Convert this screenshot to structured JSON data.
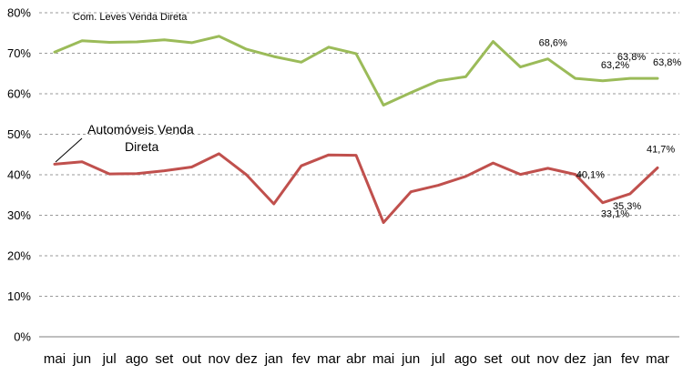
{
  "chart_data": {
    "type": "line",
    "categories": [
      "mai",
      "jun",
      "jul",
      "ago",
      "set",
      "out",
      "nov",
      "dez",
      "jan",
      "fev",
      "mar",
      "abr",
      "mai",
      "jun",
      "jul",
      "ago",
      "set",
      "out",
      "nov",
      "dez",
      "jan",
      "fev",
      "mar"
    ],
    "ylim": [
      0,
      80
    ],
    "yticks": [
      "0%",
      "10%",
      "20%",
      "30%",
      "40%",
      "50%",
      "60%",
      "70%",
      "80%"
    ],
    "grid": true,
    "series": [
      {
        "name": "Com. Leves Venda Direta",
        "color": "#9bbb59",
        "values": [
          70.3,
          73.1,
          72.7,
          72.8,
          73.3,
          72.6,
          74.2,
          71.0,
          69.2,
          67.8,
          71.5,
          69.9,
          57.2,
          60.3,
          63.2,
          64.2,
          72.9,
          66.6,
          68.6,
          63.8,
          63.2,
          63.8,
          63.8
        ]
      },
      {
        "name": "Automóveis Venda Direta",
        "color": "#c0504d",
        "values": [
          42.6,
          43.2,
          40.2,
          40.3,
          41.0,
          41.9,
          45.2,
          40.0,
          32.8,
          42.2,
          44.9,
          44.8,
          28.2,
          35.8,
          37.4,
          39.6,
          42.9,
          40.1,
          41.6,
          40.1,
          33.1,
          35.3,
          41.7
        ]
      }
    ],
    "series_labels": {
      "green": "Com. Leves Venda Direta",
      "red_line1": "Automóveis Venda",
      "red_line2": "Direta"
    },
    "data_labels": {
      "green": [
        {
          "index": 18,
          "text": "68,6%"
        },
        {
          "index": 20,
          "text": "63,2%"
        },
        {
          "index": 21,
          "text": "63,8%"
        },
        {
          "index": 22,
          "text": "63,8%"
        }
      ],
      "red": [
        {
          "index": 19,
          "text": "40,1%"
        },
        {
          "index": 20,
          "text": "33,1%"
        },
        {
          "index": 21,
          "text": "35,3%"
        },
        {
          "index": 22,
          "text": "41,7%"
        }
      ]
    }
  }
}
